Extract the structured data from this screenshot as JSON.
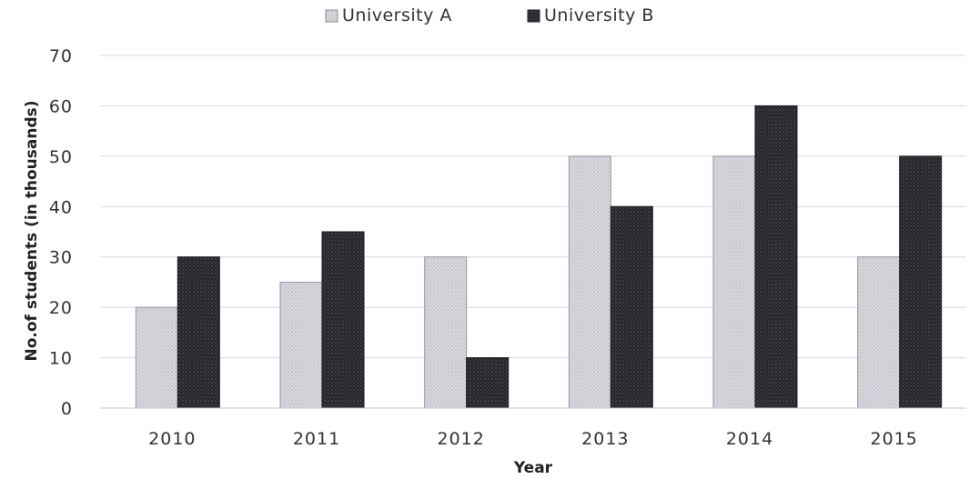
{
  "chart_data": {
    "type": "bar",
    "title": "",
    "xlabel": "Year",
    "ylabel": "No.of students (in thousands)",
    "categories": [
      "2010",
      "2011",
      "2012",
      "2013",
      "2014",
      "2015"
    ],
    "series": [
      {
        "name": "University A",
        "values": [
          20,
          25,
          30,
          50,
          50,
          30
        ],
        "color": "#d4d0d8"
      },
      {
        "name": "University B",
        "values": [
          30,
          35,
          10,
          40,
          60,
          50
        ],
        "color": "#2a2a2e"
      }
    ],
    "ylim": [
      0,
      70
    ],
    "yticks": [
      0,
      10,
      20,
      30,
      40,
      50,
      60,
      70
    ],
    "grid": true,
    "legend_position": "top-center"
  }
}
